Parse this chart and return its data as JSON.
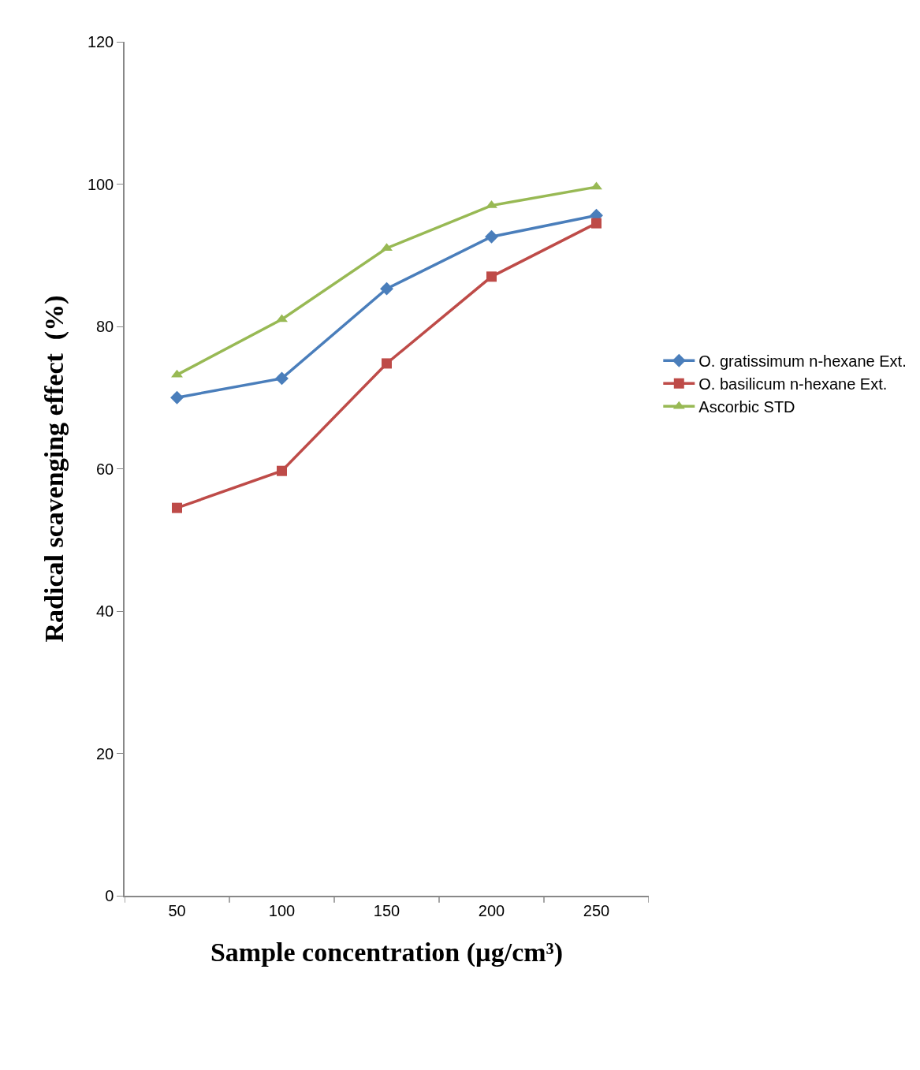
{
  "chart_data": {
    "type": "line",
    "xlabel": "Sample concentration (µg/cm³)",
    "ylabel": "Radical scavenging effect  (%)",
    "categories": [
      "50",
      "100",
      "150",
      "200",
      "250"
    ],
    "ylim": [
      0,
      120
    ],
    "yticks": [
      0,
      20,
      40,
      60,
      80,
      100,
      120
    ],
    "grid": false,
    "legend": "right",
    "line_style": "solid",
    "series": [
      {
        "name": "O. gratissimum n-hexane Ext.",
        "color": "#4a7ebb",
        "marker": "diamond",
        "values": [
          70.0,
          72.7,
          85.3,
          92.6,
          95.6
        ]
      },
      {
        "name": "O. basilicum n-hexane Ext.",
        "color": "#be4b48",
        "marker": "square",
        "values": [
          54.5,
          59.7,
          74.8,
          87.0,
          94.5
        ]
      },
      {
        "name": "Ascorbic STD",
        "color": "#98b954",
        "marker": "triangle",
        "values": [
          73.2,
          81.0,
          91.0,
          97.0,
          99.6
        ]
      }
    ]
  }
}
